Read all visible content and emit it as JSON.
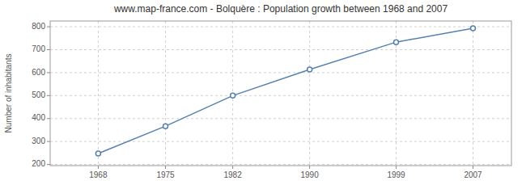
{
  "chart_data": {
    "type": "line",
    "title": "www.map-france.com - Bolquère : Population growth between 1968 and 2007",
    "x": [
      1968,
      1975,
      1982,
      1990,
      1999,
      2007
    ],
    "values": [
      248,
      367,
      500,
      614,
      733,
      793
    ],
    "ylabel": "Number of inhabitants",
    "xlim": [
      1963,
      2011
    ],
    "ylim": [
      195,
      825
    ],
    "xticks": [
      1968,
      1975,
      1982,
      1990,
      1999,
      2007
    ],
    "yticks": [
      200,
      300,
      400,
      500,
      600,
      700,
      800
    ],
    "color": "#5580b0",
    "marker": "circle",
    "grid": true
  }
}
